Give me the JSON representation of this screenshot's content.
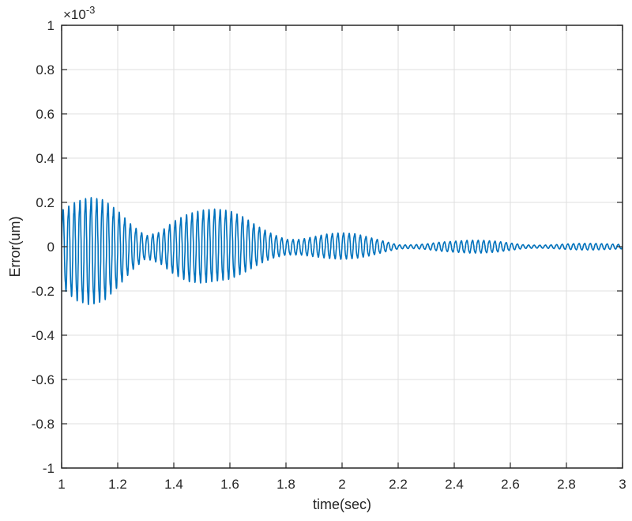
{
  "chart_data": {
    "type": "line",
    "title": "",
    "xlabel": "time(sec)",
    "ylabel": "Error(um)",
    "y_exponent_label": "×10",
    "y_exponent_power": "-3",
    "xlim": [
      1,
      3
    ],
    "ylim": [
      -0.001,
      0.001
    ],
    "grid": true,
    "legend": null,
    "x_ticks": [
      1,
      1.2,
      1.4,
      1.6,
      1.8,
      2,
      2.2,
      2.4,
      2.6,
      2.8,
      3
    ],
    "x_tick_labels": [
      "1",
      "1.2",
      "1.4",
      "1.6",
      "1.8",
      "2",
      "2.2",
      "2.4",
      "2.6",
      "2.8",
      "3"
    ],
    "y_ticks": [
      1,
      0.8,
      0.6,
      0.4,
      0.2,
      0,
      -0.2,
      -0.4,
      -0.6,
      -0.8,
      -1
    ],
    "y_tick_labels": [
      "1",
      "0.8",
      "0.6",
      "0.4",
      "0.2",
      "0",
      "-0.2",
      "-0.4",
      "-0.6",
      "-0.8",
      "-1"
    ],
    "series": [
      {
        "name": "Error",
        "color": "#0072BD",
        "description": "Oscillating tracking error with decaying beat envelope",
        "envelope_x": [
          1.0,
          1.05,
          1.1,
          1.15,
          1.2,
          1.25,
          1.3,
          1.35,
          1.4,
          1.45,
          1.5,
          1.55,
          1.6,
          1.65,
          1.7,
          1.75,
          1.8,
          1.85,
          1.9,
          1.95,
          2.0,
          2.05,
          2.1,
          2.15,
          2.2,
          2.25,
          2.3,
          2.35,
          2.4,
          2.45,
          2.5,
          2.55,
          2.6,
          2.65,
          2.7,
          2.75,
          2.8,
          2.85,
          2.9,
          2.95,
          3.0
        ],
        "envelope_upper_e3": [
          0.2,
          0.25,
          0.275,
          0.26,
          0.2,
          0.12,
          0.06,
          0.08,
          0.14,
          0.18,
          0.2,
          0.205,
          0.195,
          0.16,
          0.11,
          0.07,
          0.04,
          0.04,
          0.055,
          0.07,
          0.075,
          0.07,
          0.05,
          0.03,
          0.01,
          0.01,
          0.015,
          0.025,
          0.03,
          0.035,
          0.035,
          0.03,
          0.02,
          0.01,
          0.008,
          0.01,
          0.015,
          0.018,
          0.018,
          0.015,
          0.012
        ],
        "envelope_lower_e3": [
          -0.22,
          -0.29,
          -0.315,
          -0.295,
          -0.22,
          -0.13,
          -0.065,
          -0.09,
          -0.15,
          -0.19,
          -0.2,
          -0.19,
          -0.18,
          -0.145,
          -0.1,
          -0.065,
          -0.045,
          -0.045,
          -0.055,
          -0.065,
          -0.07,
          -0.065,
          -0.05,
          -0.03,
          -0.012,
          -0.01,
          -0.015,
          -0.025,
          -0.03,
          -0.035,
          -0.035,
          -0.03,
          -0.02,
          -0.01,
          -0.008,
          -0.01,
          -0.015,
          -0.018,
          -0.018,
          -0.015,
          -0.012
        ],
        "oscillation_period_sec": 0.02,
        "peak_positive_e3": 0.275,
        "peak_negative_e3": -0.315
      }
    ]
  },
  "colors": {
    "line": "#0072BD",
    "axis": "#262626",
    "grid": "#dfdfdf",
    "background": "#ffffff"
  }
}
